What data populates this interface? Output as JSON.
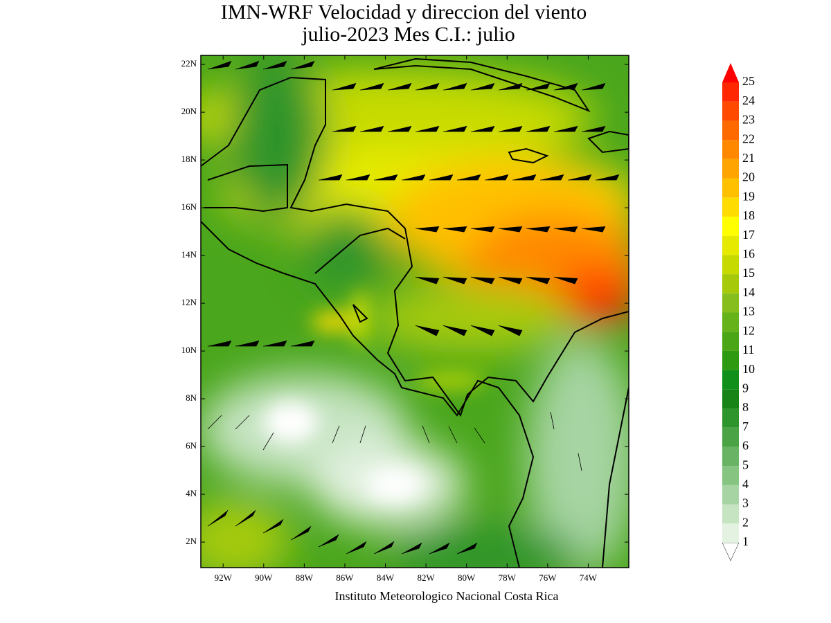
{
  "title": [
    "IMN-WRF Velocidad y direccion del viento",
    "julio-2023 Mes C.I.: julio"
  ],
  "map": {
    "lon_range": [
      -93.1,
      -72.0
    ],
    "lat_range": [
      0.93,
      22.38
    ],
    "lon_ticks": [
      {
        "value": -92,
        "label": "92W"
      },
      {
        "value": -90,
        "label": "90W"
      },
      {
        "value": -88,
        "label": "88W"
      },
      {
        "value": -86,
        "label": "86W"
      },
      {
        "value": -84,
        "label": "84W"
      },
      {
        "value": -82,
        "label": "82W"
      },
      {
        "value": -80,
        "label": "80W"
      },
      {
        "value": -78,
        "label": "78W"
      },
      {
        "value": -76,
        "label": "76W"
      },
      {
        "value": -74,
        "label": "74W"
      }
    ],
    "lat_ticks": [
      {
        "value": 2,
        "label": "2N"
      },
      {
        "value": 4,
        "label": "4N"
      },
      {
        "value": 6,
        "label": "6N"
      },
      {
        "value": 8,
        "label": "8N"
      },
      {
        "value": 10,
        "label": "10N"
      },
      {
        "value": 12,
        "label": "12N"
      },
      {
        "value": 14,
        "label": "14N"
      },
      {
        "value": 16,
        "label": "16N"
      },
      {
        "value": 18,
        "label": "18N"
      },
      {
        "value": 20,
        "label": "20N"
      },
      {
        "value": 22,
        "label": "22N"
      }
    ]
  },
  "colorbar": {
    "levels": [
      1,
      2,
      3,
      4,
      5,
      6,
      7,
      8,
      9,
      10,
      11,
      12,
      13,
      14,
      15,
      16,
      17,
      18,
      19,
      20,
      21,
      22,
      23,
      24,
      25
    ],
    "colors": [
      "#ffffff",
      "#e4f2e2",
      "#c6e4c2",
      "#a6d4a2",
      "#86c482",
      "#68b464",
      "#4aa446",
      "#2e942c",
      "#188418",
      "#10901a",
      "#2e9a12",
      "#4aa616",
      "#66b21a",
      "#86be1e",
      "#a6ca0a",
      "#c6da00",
      "#e6ea00",
      "#ffff00",
      "#ffdc00",
      "#ffc000",
      "#ffa400",
      "#ff8800",
      "#ff6a00",
      "#ff4a00",
      "#ff2800",
      "#ff0000"
    ]
  },
  "footer": "Instituto Meteorologico Nacional Costa Rica"
}
